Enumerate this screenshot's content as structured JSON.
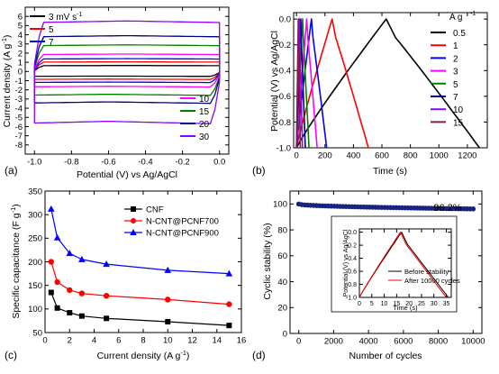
{
  "chart_data": [
    {
      "panel": "(a)",
      "type": "line",
      "title": "",
      "xlabel": "Potential (V) vs Ag/AgCl",
      "ylabel": "Current density (A g",
      "ylabel_sup": "-1",
      "ylabel_tail": ")",
      "xlim": [
        -1.05,
        0.05
      ],
      "ylim": [
        -9,
        7
      ],
      "xticks": [
        -1.0,
        -0.8,
        -0.6,
        -0.4,
        -0.2,
        0.0
      ],
      "xtick_labels": [
        "-1.0",
        "-0.8",
        "-0.6",
        "-0.4",
        "-0.2",
        "0.0"
      ],
      "yticks": [
        -8,
        -7,
        -6,
        -5,
        -4,
        -3,
        -2,
        -1,
        0,
        1,
        2,
        3,
        4,
        5,
        6
      ],
      "ytick_labels": [
        "-8",
        "-7",
        "-6",
        "-5",
        "-4",
        "-3",
        "-2",
        "-1",
        "0",
        "1",
        "2",
        "3",
        "4",
        "5",
        "6"
      ],
      "legend_top": [
        "3 mV s",
        "5",
        "7"
      ],
      "legend_top_sup": "-1",
      "legend_bottom": [
        "10",
        "15",
        "20",
        "30"
      ],
      "series": [
        {
          "name": "3 mV s-1",
          "color": "#000000",
          "upper": 0.65,
          "lower": -0.55
        },
        {
          "name": "5",
          "color": "#ff0000",
          "upper": 1.05,
          "lower": -0.9
        },
        {
          "name": "7",
          "color": "#0000ff",
          "upper": 1.4,
          "lower": -1.25
        },
        {
          "name": "10",
          "color": "#ff00ff",
          "upper": 1.9,
          "lower": -1.75
        },
        {
          "name": "15",
          "color": "#008000",
          "upper": 2.9,
          "lower": -2.7
        },
        {
          "name": "20",
          "color": "#000080",
          "upper": 3.9,
          "lower": -3.6
        },
        {
          "name": "30",
          "color": "#8b00ff",
          "upper": 5.5,
          "lower": -5.9
        }
      ]
    },
    {
      "panel": "(b)",
      "type": "line",
      "title": "",
      "xlabel": "Time (s)",
      "ylabel": "Potential (V) vs Ag/AgCl",
      "xlim": [
        -20,
        1340
      ],
      "ylim": [
        -1.0,
        0.05
      ],
      "xticks": [
        0,
        200,
        400,
        600,
        800,
        1000,
        1200
      ],
      "xtick_labels": [
        "0",
        "200",
        "400",
        "600",
        "800",
        "1000",
        "1200"
      ],
      "yticks": [
        -1.0,
        -0.8,
        -0.6,
        -0.4,
        -0.2,
        0.0
      ],
      "ytick_labels": [
        "-1.0",
        "-0.8",
        "-0.6",
        "-0.4",
        "-0.2",
        "0.0"
      ],
      "legend_title": "A g",
      "legend_title_sup": "-1",
      "series": [
        {
          "name": "0.5",
          "color": "#000000",
          "charge_end": 630,
          "discharge_end": 1285
        },
        {
          "name": "1",
          "color": "#ff0000",
          "charge_end": 250,
          "discharge_end": 505
        },
        {
          "name": "2",
          "color": "#0000ff",
          "charge_end": 105,
          "discharge_end": 212
        },
        {
          "name": "3",
          "color": "#ff00ff",
          "charge_end": 72,
          "discharge_end": 145
        },
        {
          "name": "5",
          "color": "#008000",
          "charge_end": 43,
          "discharge_end": 88
        },
        {
          "name": "7",
          "color": "#000080",
          "charge_end": 30,
          "discharge_end": 62
        },
        {
          "name": "10",
          "color": "#8b00ff",
          "charge_end": 20,
          "discharge_end": 42
        },
        {
          "name": "15",
          "color": "#8b1a4a",
          "charge_end": 13,
          "discharge_end": 27
        }
      ]
    },
    {
      "panel": "(c)",
      "type": "line",
      "title": "",
      "xlabel": "Current density (A g",
      "xlabel_sup": "-1",
      "xlabel_tail": ")",
      "ylabel": "Specific capacitance (F g",
      "ylabel_sup": "-1",
      "ylabel_tail": ")",
      "xlim": [
        0,
        16
      ],
      "ylim": [
        50,
        350
      ],
      "xticks": [
        0,
        2,
        4,
        6,
        8,
        10,
        12,
        14,
        16
      ],
      "xtick_labels": [
        "0",
        "2",
        "4",
        "6",
        "8",
        "10",
        "12",
        "14",
        "16"
      ],
      "yticks": [
        50,
        100,
        150,
        200,
        250,
        300,
        350
      ],
      "ytick_labels": [
        "50",
        "100",
        "150",
        "200",
        "250",
        "300",
        "350"
      ],
      "x": [
        0.5,
        1,
        2,
        3,
        5,
        10,
        15
      ],
      "series": [
        {
          "name": "CNF",
          "color": "#000000",
          "marker": "square",
          "values": [
            135,
            102,
            92,
            85,
            80,
            73,
            65
          ]
        },
        {
          "name": "N-CNT@PCNF700",
          "color": "#ff0000",
          "marker": "circle",
          "values": [
            200,
            157,
            140,
            133,
            128,
            120,
            110
          ]
        },
        {
          "name": "N-CNT@PCNF900",
          "color": "#0000ff",
          "marker": "triangle",
          "values": [
            312,
            251,
            218,
            205,
            195,
            182,
            175
          ]
        }
      ]
    },
    {
      "panel": "(d)",
      "type": "scatter",
      "title": "",
      "xlabel": "Number of cycles",
      "ylabel": "Cyclic stability (%)",
      "xlim": [
        -500,
        10500
      ],
      "ylim": [
        0,
        110
      ],
      "xticks": [
        0,
        2000,
        4000,
        6000,
        8000,
        10000
      ],
      "xtick_labels": [
        "0",
        "2000",
        "4000",
        "6000",
        "8000",
        "10000"
      ],
      "yticks": [
        0,
        20,
        40,
        60,
        80,
        100
      ],
      "ytick_labels": [
        "0",
        "20",
        "40",
        "60",
        "80",
        "100"
      ],
      "annotation": "96.2%",
      "series": [
        {
          "name": "retention",
          "color": "#1a237e",
          "start": 100,
          "end": 96.2,
          "points": 60
        }
      ],
      "inset": {
        "type": "line",
        "xlabel": "Time (s)",
        "ylabel": "Potential (V) vs Ag/AgCl",
        "xlim": [
          0,
          37
        ],
        "ylim": [
          -1.0,
          0.05
        ],
        "xticks": [
          0,
          5,
          10,
          15,
          20,
          25,
          30,
          35
        ],
        "xtick_labels": [
          "0",
          "5",
          "10",
          "15",
          "20",
          "25",
          "30",
          "35"
        ],
        "yticks": [
          -1.0,
          -0.8,
          -0.6,
          -0.4,
          -0.2,
          0.0
        ],
        "ytick_labels": [
          "-1.0",
          "-0.8",
          "-0.6",
          "-0.4",
          "-0.2",
          "0.0"
        ],
        "series": [
          {
            "name": "Before stability",
            "color": "#000000",
            "charge_end": 17.0,
            "discharge_end": 35.8
          },
          {
            "name": "After 10000 cycles",
            "color": "#ff0000",
            "charge_end": 16.5,
            "discharge_end": 35.0
          }
        ]
      }
    }
  ]
}
